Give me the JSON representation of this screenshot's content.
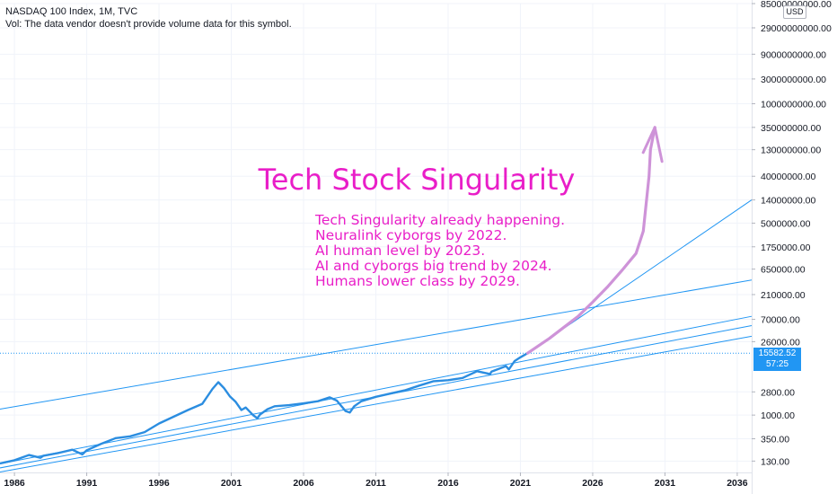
{
  "header": {
    "title": "NASDAQ 100 Index, 1M, TVC",
    "volume_note": "Vol: The data vendor doesn't provide volume data for this symbol."
  },
  "currency": "USD",
  "last_price": {
    "value": "15582.52",
    "countdown": "57:25"
  },
  "colors": {
    "price_line": "#2b8de0",
    "channel": "#2196f3",
    "projection": "#ce93d8",
    "annotation": "#e91ec8",
    "price_tag": "#2196f3"
  },
  "annotations": {
    "title": "Tech Stock Singularity",
    "lines": [
      "Tech Singularity already happening.",
      "Neuralink cyborgs by 2022.",
      "AI human level by 2023.",
      "AI and cyborgs big trend by 2024.",
      "Humans lower class by 2029."
    ]
  },
  "chart_data": {
    "type": "line",
    "scale": "log",
    "xlim": [
      1985,
      2037
    ],
    "ylim": [
      85,
      85000000000
    ],
    "x_ticks": [
      "1986",
      "1991",
      "1996",
      "2001",
      "2006",
      "2011",
      "2016",
      "2021",
      "2026",
      "2031",
      "2036"
    ],
    "y_ticks": [
      "85000000000.00",
      "29000000000.00",
      "9000000000.00",
      "3000000000.00",
      "1000000000.00",
      "350000000.00",
      "130000000.00",
      "40000000.00",
      "14000000.00",
      "5000000.00",
      "1750000.00",
      "650000.00",
      "210000.00",
      "70000.00",
      "26000.00",
      "2800.00",
      "1000.00",
      "350.00",
      "130.00"
    ],
    "series": [
      {
        "points": [
          [
            1985,
            117
          ],
          [
            1986,
            135
          ],
          [
            1987,
            170
          ],
          [
            1987.8,
            150
          ],
          [
            1988,
            165
          ],
          [
            1989,
            185
          ],
          [
            1990,
            215
          ],
          [
            1990.7,
            175
          ],
          [
            1991,
            210
          ],
          [
            1992,
            280
          ],
          [
            1993,
            360
          ],
          [
            1994,
            390
          ],
          [
            1995,
            470
          ],
          [
            1996,
            690
          ],
          [
            1997,
            930
          ],
          [
            1998,
            1250
          ],
          [
            1999,
            1650
          ],
          [
            1999.7,
            3200
          ],
          [
            2000.1,
            4300
          ],
          [
            2000.5,
            3300
          ],
          [
            2000.9,
            2300
          ],
          [
            2001.3,
            1800
          ],
          [
            2001.7,
            1250
          ],
          [
            2002,
            1400
          ],
          [
            2002.5,
            1000
          ],
          [
            2002.8,
            870
          ],
          [
            2003,
            1030
          ],
          [
            2003.5,
            1300
          ],
          [
            2004,
            1480
          ],
          [
            2005,
            1550
          ],
          [
            2006,
            1680
          ],
          [
            2007,
            1850
          ],
          [
            2007.8,
            2200
          ],
          [
            2008.3,
            1900
          ],
          [
            2008.9,
            1200
          ],
          [
            2009.2,
            1120
          ],
          [
            2009.5,
            1480
          ],
          [
            2010,
            1850
          ],
          [
            2011,
            2250
          ],
          [
            2012,
            2600
          ],
          [
            2013,
            3000
          ],
          [
            2014,
            3700
          ],
          [
            2015,
            4500
          ],
          [
            2016,
            4700
          ],
          [
            2017,
            5200
          ],
          [
            2018,
            7000
          ],
          [
            2018.9,
            6200
          ],
          [
            2019,
            6900
          ],
          [
            2020,
            8800
          ],
          [
            2020.2,
            7600
          ],
          [
            2020.6,
            11000
          ],
          [
            2021,
            13000
          ],
          [
            2021.5,
            15582
          ]
        ]
      },
      {
        "name": "projection",
        "points": [
          [
            2021.5,
            15582
          ],
          [
            2023,
            30000
          ],
          [
            2025,
            80000
          ],
          [
            2026,
            150000
          ],
          [
            2027,
            290000
          ],
          [
            2028,
            600000
          ],
          [
            2029,
            1300000
          ],
          [
            2029.5,
            3500000
          ],
          [
            2029.9,
            40000000
          ],
          [
            2030,
            130000000
          ],
          [
            2030.3,
            350000000
          ]
        ]
      },
      {
        "name": "channel",
        "segments": [
          [
            [
              1985,
              1300
            ],
            [
              2037,
              400000
            ]
          ],
          [
            [
              1985,
              115
            ],
            [
              2037,
              80000
            ]
          ],
          [
            [
              1985,
              96
            ],
            [
              2037,
              53000
            ]
          ],
          [
            [
              1985,
              80
            ],
            [
              2037,
              33000
            ]
          ],
          [
            [
              2021.5,
              15582
            ],
            [
              2037,
              14000000
            ]
          ]
        ]
      }
    ]
  }
}
